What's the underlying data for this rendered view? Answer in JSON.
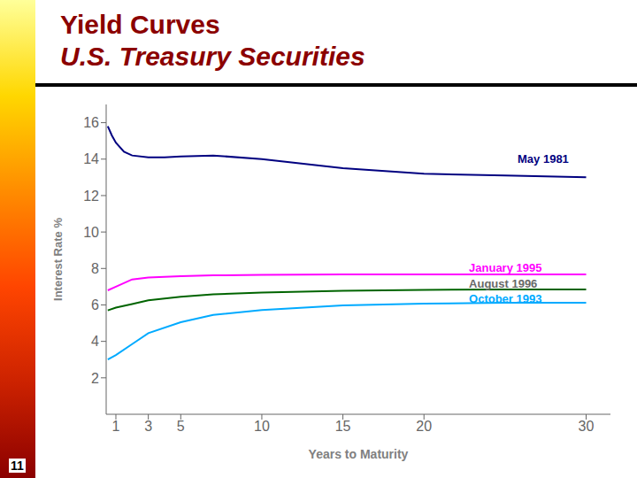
{
  "chart_data": {
    "type": "line",
    "title": "Yield Curves",
    "subtitle": "U.S. Treasury Securities",
    "title_color": "#8B0000",
    "x_label": "Years to Maturity",
    "y_label": "Interest Rate %",
    "xlim": [
      0.4,
      31.5
    ],
    "xticks": [
      1,
      3,
      5,
      10,
      15,
      20,
      30
    ],
    "ylim": [
      0,
      17
    ],
    "yticks": [
      2,
      4,
      6,
      8,
      10,
      12,
      14,
      16
    ],
    "grid": false,
    "page_number": "11",
    "series": [
      {
        "name": "May 1981",
        "color": "#000080",
        "x": [
          0.5,
          0.75,
          1.0,
          1.5,
          2,
          3,
          4,
          5,
          7,
          10,
          15,
          20,
          25,
          30
        ],
        "values": [
          15.8,
          15.3,
          14.9,
          14.4,
          14.2,
          14.1,
          14.1,
          14.15,
          14.2,
          14.0,
          13.5,
          13.2,
          13.1,
          13.0
        ]
      },
      {
        "name": "January 1995",
        "color": "#FF00FF",
        "x": [
          0.5,
          1,
          2,
          3,
          5,
          7,
          10,
          15,
          20,
          25,
          30
        ],
        "values": [
          6.8,
          7.0,
          7.4,
          7.5,
          7.58,
          7.62,
          7.65,
          7.68,
          7.68,
          7.68,
          7.68
        ]
      },
      {
        "name": "August 1996",
        "color": "#006400",
        "x": [
          0.5,
          1,
          2,
          3,
          5,
          7,
          10,
          15,
          20,
          25,
          30
        ],
        "values": [
          5.7,
          5.85,
          6.05,
          6.25,
          6.45,
          6.58,
          6.68,
          6.78,
          6.83,
          6.85,
          6.85
        ]
      },
      {
        "name": "October 1993",
        "color": "#00AAFF",
        "x": [
          0.5,
          1,
          2,
          3,
          5,
          7,
          10,
          15,
          20,
          25,
          30
        ],
        "values": [
          3.0,
          3.25,
          3.85,
          4.45,
          5.05,
          5.45,
          5.72,
          5.97,
          6.07,
          6.12,
          6.12
        ]
      }
    ],
    "annotations": [
      {
        "text": "May 1981",
        "x": 25.5,
        "y": 14.0,
        "color": "#000080"
      },
      {
        "text": "January 1995",
        "x": 22.5,
        "y": 8.05,
        "color": "#FF00FF"
      },
      {
        "text": "August 1996",
        "x": 22.5,
        "y": 7.15,
        "color": "#696969"
      },
      {
        "text": "October 1993",
        "x": 22.5,
        "y": 6.35,
        "color": "#00AAFF"
      }
    ]
  }
}
